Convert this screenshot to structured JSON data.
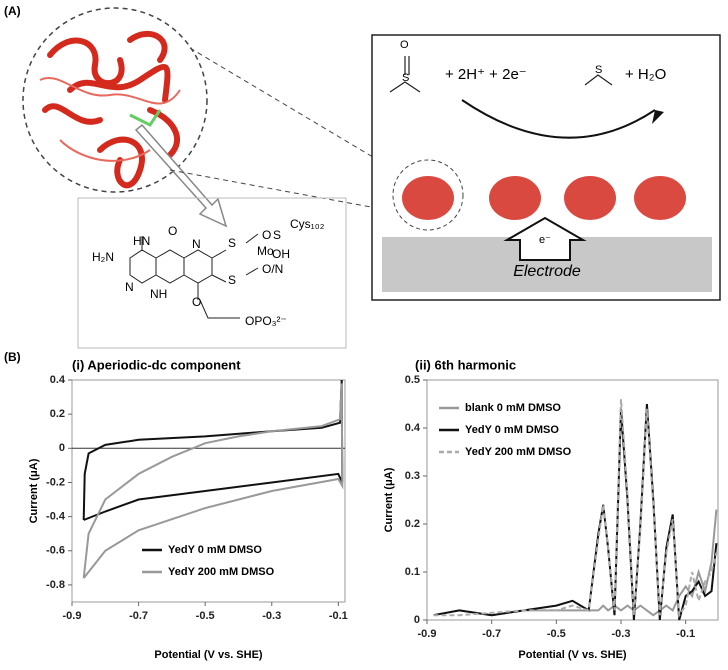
{
  "panel_a": {
    "label": "(A)",
    "reaction": {
      "left": "+ 2H⁺ + 2e⁻",
      "right": "+ H₂O",
      "electron": "e⁻",
      "electrode": "Electrode",
      "oxygen": "O",
      "sulfur": "S",
      "sulfur2": "S"
    },
    "structure": {
      "h2n": "H₂N",
      "hn": "HN",
      "o_top": "O",
      "n1": "N",
      "n2": "N",
      "nh": "NH",
      "o_ring": "O",
      "s1": "S",
      "s2": "S",
      "mo": "Mo",
      "oh": "OH",
      "on": "O/N",
      "o_mo": "O",
      "s3": "S",
      "cys": "Cys₁₀₂",
      "phos": "OPO₃²⁻"
    }
  },
  "panel_b_label": "(B)",
  "chart_data": [
    {
      "type": "line",
      "title": "(i) Aperiodic-dc component",
      "x_label": "Potential (V vs. SHE)",
      "y_label": "Current (μA)",
      "xlim": [
        -0.9,
        -0.08
      ],
      "xticks": [
        -0.9,
        -0.7,
        -0.5,
        -0.3,
        -0.1
      ],
      "ylim": [
        -0.9,
        0.4
      ],
      "yticks": [
        0.4,
        0.2,
        0,
        -0.2,
        -0.4,
        -0.6,
        -0.8
      ],
      "zero_line": true,
      "legend": "lower right",
      "series": [
        {
          "name": "YedY 0 mM DMSO",
          "color": "#111111",
          "dash": false,
          "x": [
            -0.865,
            -0.862,
            -0.85,
            -0.8,
            -0.7,
            -0.5,
            -0.3,
            -0.15,
            -0.095,
            -0.09,
            -0.088,
            -0.1,
            -0.3,
            -0.5,
            -0.7,
            -0.8,
            -0.865
          ],
          "values": [
            -0.42,
            -0.15,
            -0.03,
            0.02,
            0.05,
            0.07,
            0.1,
            0.12,
            0.15,
            0.4,
            -0.2,
            -0.15,
            -0.2,
            -0.25,
            -0.3,
            -0.37,
            -0.42
          ]
        },
        {
          "name": "YedY 200 mM DMSO",
          "color": "#999999",
          "dash": false,
          "x": [
            -0.865,
            -0.85,
            -0.8,
            -0.7,
            -0.6,
            -0.5,
            -0.4,
            -0.3,
            -0.15,
            -0.095,
            -0.09,
            -0.088,
            -0.1,
            -0.3,
            -0.5,
            -0.7,
            -0.8,
            -0.865
          ],
          "values": [
            -0.76,
            -0.5,
            -0.3,
            -0.15,
            -0.05,
            0.03,
            0.07,
            0.1,
            0.13,
            0.17,
            0.38,
            -0.22,
            -0.18,
            -0.25,
            -0.35,
            -0.48,
            -0.6,
            -0.76
          ]
        }
      ]
    },
    {
      "type": "line",
      "title": "(ii) 6th harmonic",
      "x_label": "Potential (V vs. SHE)",
      "y_label": "Current (μA)",
      "xlim": [
        -0.9,
        0
      ],
      "xticks": [
        -0.9,
        -0.7,
        -0.5,
        -0.3,
        -0.1
      ],
      "ylim": [
        0,
        0.5
      ],
      "yticks": [
        0,
        0.1,
        0.2,
        0.3,
        0.4,
        0.5
      ],
      "zero_line": false,
      "legend": "upper left",
      "x": [
        -0.88,
        -0.8,
        -0.7,
        -0.6,
        -0.5,
        -0.45,
        -0.4,
        -0.37,
        -0.355,
        -0.34,
        -0.32,
        -0.3,
        -0.28,
        -0.26,
        -0.24,
        -0.22,
        -0.2,
        -0.18,
        -0.16,
        -0.14,
        -0.12,
        -0.1,
        -0.08,
        -0.06,
        -0.04,
        -0.02,
        -0.005
      ],
      "series": [
        {
          "name": "blank 0 mM DMSO",
          "color": "#999999",
          "dash": false,
          "values": [
            0.01,
            0.02,
            0.01,
            0.02,
            0.02,
            0.02,
            0.02,
            0.02,
            0.03,
            0.02,
            0.03,
            0.02,
            0.03,
            0.02,
            0.03,
            0.02,
            0.01,
            0.02,
            0.03,
            0.02,
            0.05,
            0.07,
            0.05,
            0.1,
            0.06,
            0.12,
            0.23
          ]
        },
        {
          "name": "YedY 0 mM DMSO",
          "color": "#111111",
          "dash": false,
          "values": [
            0.01,
            0.02,
            0.01,
            0.02,
            0.03,
            0.04,
            0.02,
            0.18,
            0.24,
            0.15,
            0.01,
            0.44,
            0.25,
            0.0,
            0.2,
            0.45,
            0.25,
            0.0,
            0.15,
            0.22,
            0.0,
            0.05,
            0.06,
            0.08,
            0.05,
            0.06,
            0.16
          ]
        },
        {
          "name": "YedY 200 mM DMSO",
          "color": "#aaaaaa",
          "dash": true,
          "values": [
            0.01,
            0.01,
            0.015,
            0.02,
            0.02,
            0.03,
            0.02,
            0.17,
            0.24,
            0.15,
            0.02,
            0.46,
            0.26,
            0.01,
            0.19,
            0.44,
            0.24,
            0.01,
            0.14,
            0.21,
            0.01,
            0.03,
            0.1,
            0.04,
            0.08,
            0.1,
            0.14
          ]
        }
      ]
    }
  ]
}
